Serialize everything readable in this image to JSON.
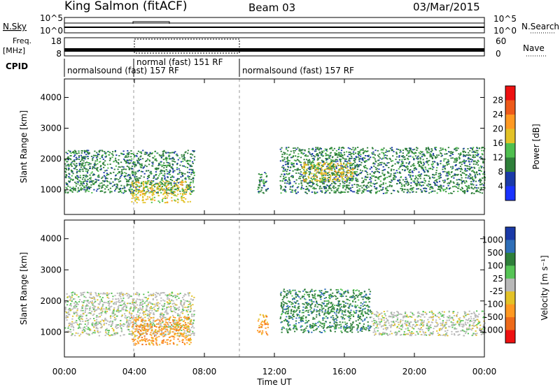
{
  "header": {
    "station": "King Salmon (fitACF)",
    "beam": "Beam 03",
    "date": "03/Mar/2015"
  },
  "panels": {
    "nsky_label": "N.Sky",
    "nsky_ticks": [
      "10^5",
      "10^0"
    ],
    "nsearch_label": "N.Search",
    "freq_label": "Freq.",
    "freq_unit": "[MHz]",
    "freq_ticks": [
      "18",
      "8"
    ],
    "nave_label": "Nave",
    "nave_ticks": [
      "60",
      "0"
    ],
    "cpid_label": "CPID",
    "cpid_segments": [
      "normalsound (fast) 157 RF",
      "normal (fast) 151 RF",
      "normalsound (fast) 157 RF"
    ]
  },
  "colors": {
    "power": [
      "#1a33ff",
      "#1a3aa8",
      "#2e7f3a",
      "#4fbf4f",
      "#e3c227",
      "#ff9922",
      "#ee5a1a",
      "#ee1111"
    ],
    "velocity": [
      "#1a3aa8",
      "#2f6fb8",
      "#2e7f3a",
      "#56c456",
      "#b8b8b8",
      "#e3c227",
      "#ff9922",
      "#ee6a1a",
      "#ee1111"
    ]
  },
  "chart_data": [
    {
      "type": "heatmap",
      "quantity": "power",
      "xlabel": "",
      "ylabel": "Slant Range [km]",
      "ylim": [
        200,
        4600
      ],
      "y_ticks": [
        "4000",
        "3000",
        "2000",
        "1000"
      ],
      "x_ticks": [
        "00:00",
        "04:00",
        "08:00",
        "12:00",
        "16:00",
        "20:00",
        "00:00"
      ],
      "colorbar_label": "Power [dB]",
      "colorbar_ticks": [
        "28",
        "24",
        "20",
        "16",
        "12",
        "8",
        "4"
      ],
      "echo_regions": [
        {
          "t_start": 0.0,
          "t_end": 7.4,
          "range_km": [
            900,
            2300
          ],
          "level_db": 8
        },
        {
          "t_start": 3.8,
          "t_end": 7.2,
          "range_km": [
            600,
            1300
          ],
          "level_db": 18
        },
        {
          "t_start": 11.0,
          "t_end": 11.6,
          "range_km": [
            900,
            1600
          ],
          "level_db": 8
        },
        {
          "t_start": 12.3,
          "t_end": 24.0,
          "range_km": [
            900,
            2400
          ],
          "level_db": 10
        },
        {
          "t_start": 13.5,
          "t_end": 16.5,
          "range_km": [
            1300,
            1900
          ],
          "level_db": 16
        }
      ]
    },
    {
      "type": "heatmap",
      "quantity": "velocity",
      "xlabel": "Time UT",
      "ylabel": "Slant Range [km]",
      "ylim": [
        200,
        4600
      ],
      "y_ticks": [
        "4000",
        "3000",
        "2000",
        "1000"
      ],
      "x_ticks": [
        "00:00",
        "04:00",
        "08:00",
        "12:00",
        "16:00",
        "20:00",
        "00:00"
      ],
      "colorbar_label": "Velocity [m s⁻¹]",
      "colorbar_ticks": [
        "1000",
        "500",
        "100",
        "25",
        "-25",
        "-100",
        "-500",
        "-1000"
      ],
      "echo_regions": [
        {
          "t_start": 0.0,
          "t_end": 7.4,
          "range_km": [
            900,
            2300
          ],
          "velocity": 0
        },
        {
          "t_start": 3.8,
          "t_end": 7.2,
          "range_km": [
            600,
            1500
          ],
          "velocity": -300
        },
        {
          "t_start": 11.0,
          "t_end": 11.6,
          "range_km": [
            900,
            1600
          ],
          "velocity": -300
        },
        {
          "t_start": 12.3,
          "t_end": 17.5,
          "range_km": [
            1000,
            2400
          ],
          "velocity": 150
        },
        {
          "t_start": 17.5,
          "t_end": 24.0,
          "range_km": [
            900,
            1700
          ],
          "velocity": 0
        }
      ]
    }
  ]
}
